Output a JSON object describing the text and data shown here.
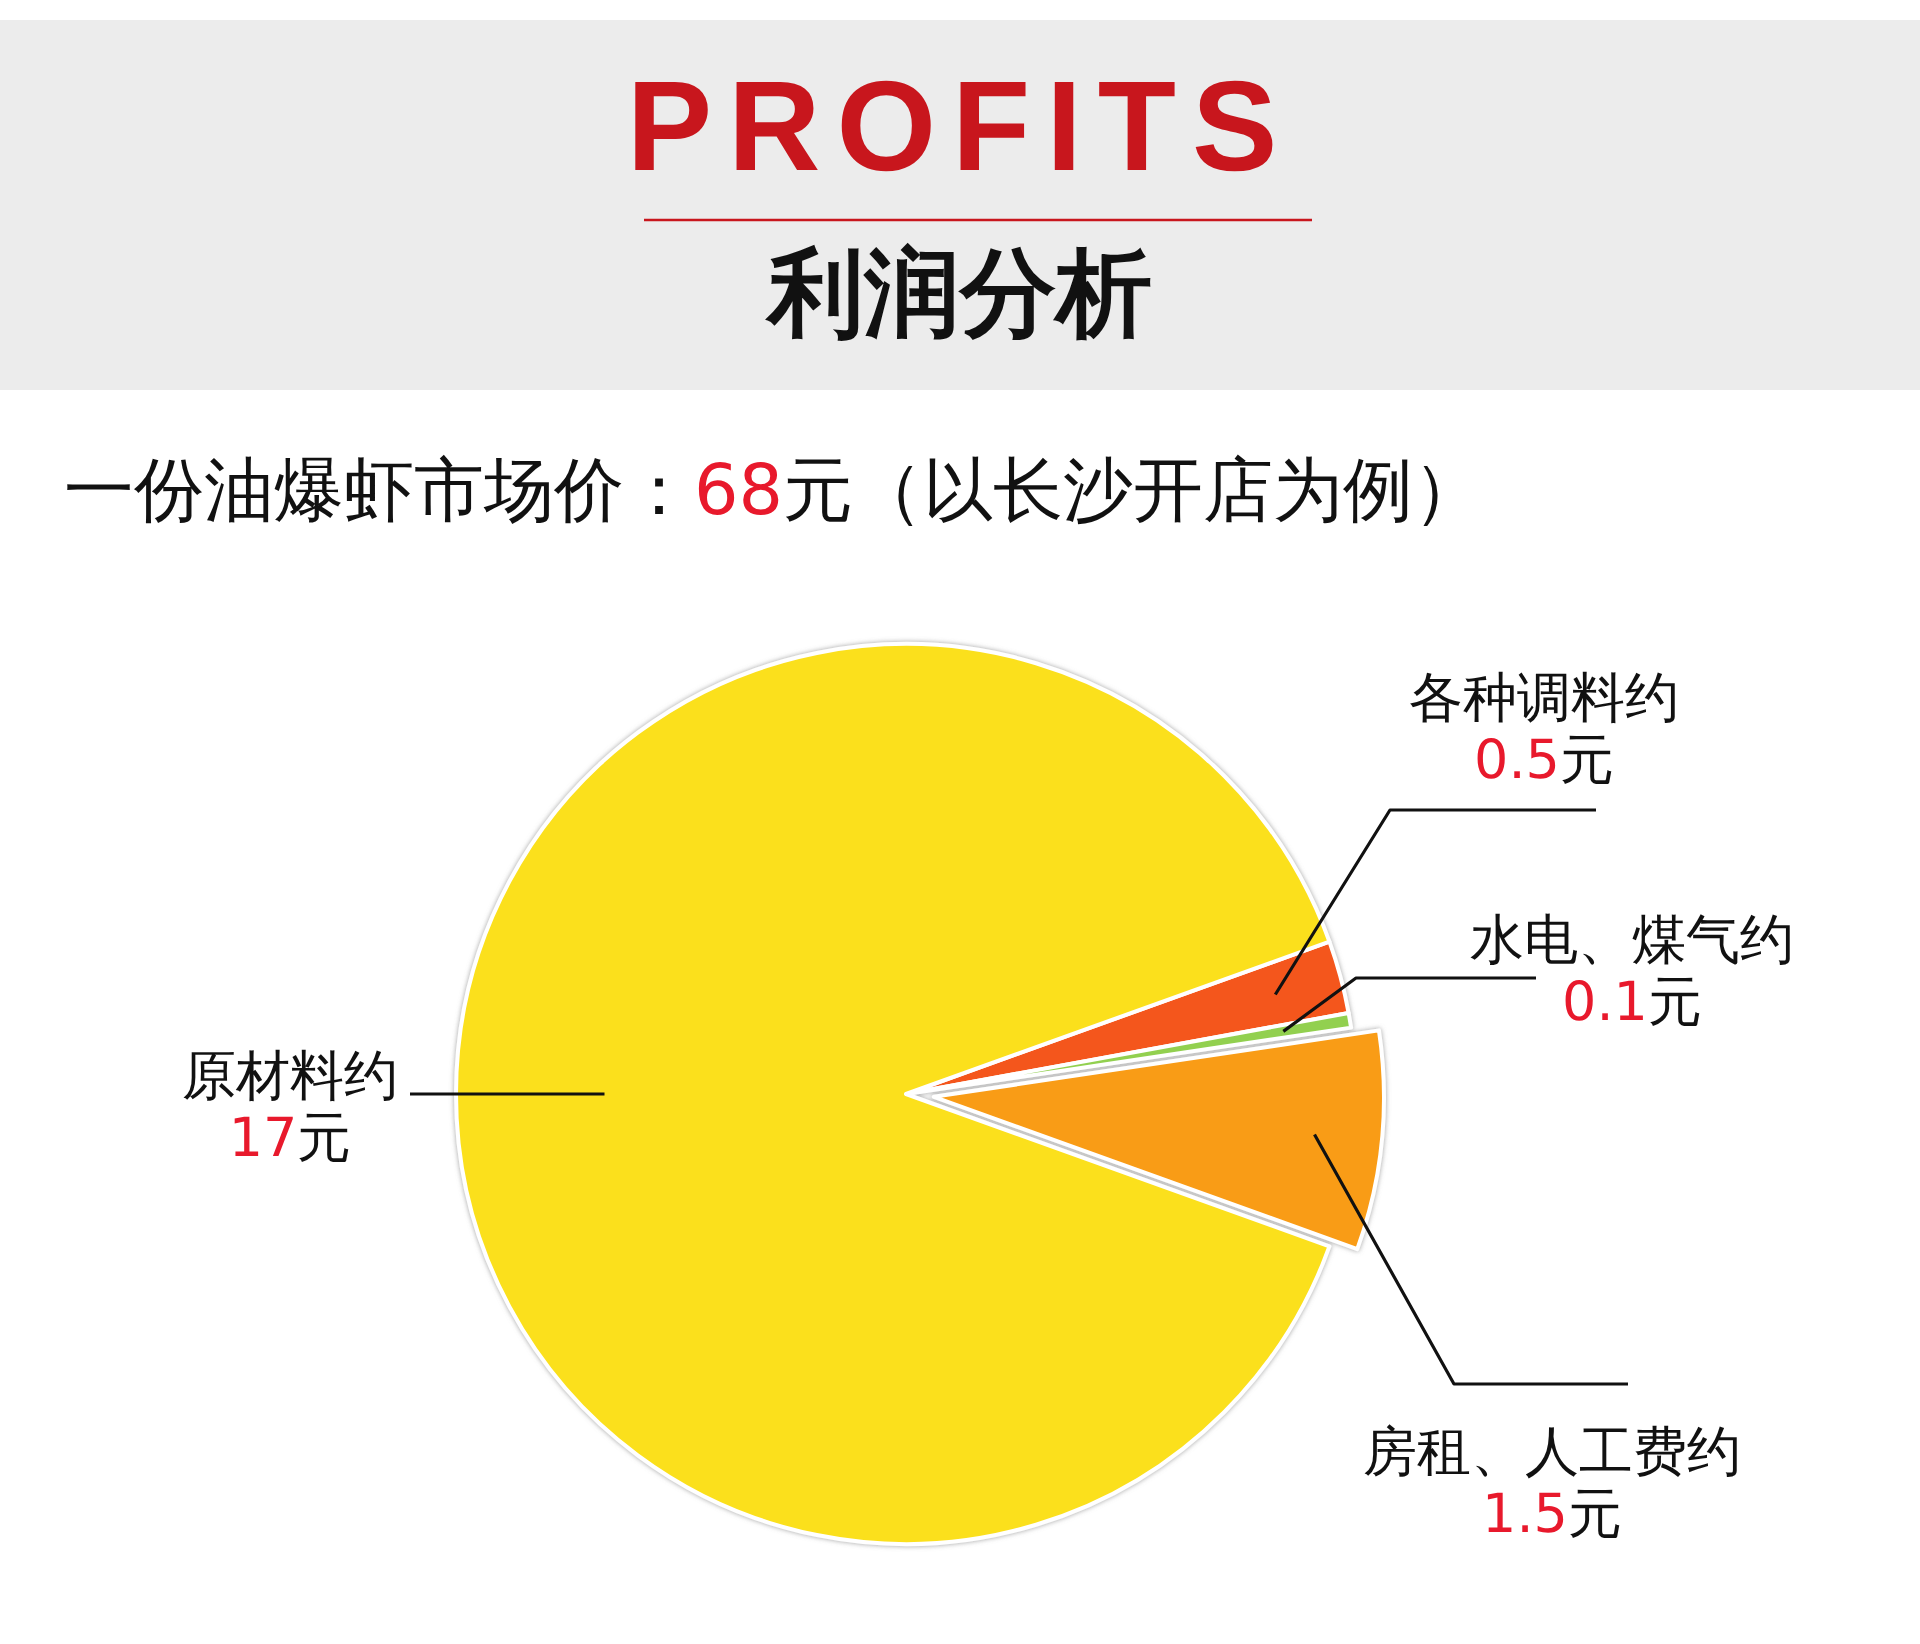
{
  "chart_data": {
    "type": "pie",
    "title": "PROFITS",
    "subtitle": "利润分析",
    "annotations": [
      "一份油爆虾市场价：68元（以长沙开店为例）"
    ],
    "categories": [
      "各种调料约",
      "水电、煤气约",
      "房租、人工费约",
      "原材料约"
    ],
    "values": [
      0.5,
      0.1,
      1.5,
      17
    ],
    "colors": [
      "#f4561c",
      "#92d050",
      "#f99c16",
      "#fbe01e"
    ],
    "value_labels": [
      "0.5元",
      "0.1元",
      "1.5元",
      "17元"
    ]
  }
}
